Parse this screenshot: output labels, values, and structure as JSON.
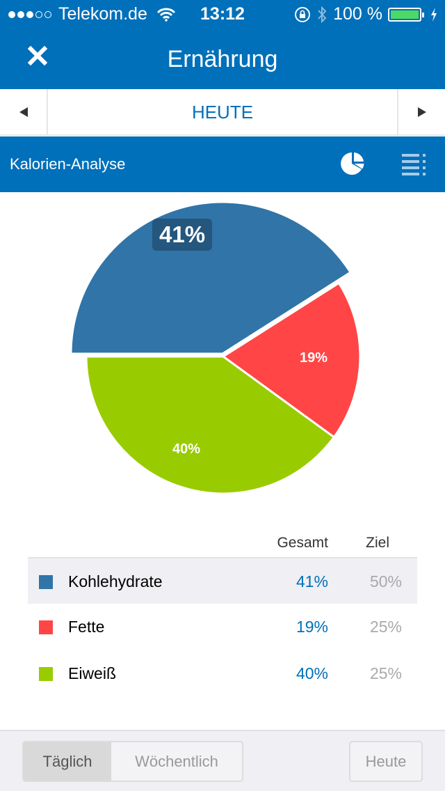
{
  "status_bar": {
    "carrier": "Telekom.de",
    "signal_dots_filled": 3,
    "signal_dots_total": 5,
    "time": "13:12",
    "battery": "100 %",
    "icons": [
      "wifi-icon",
      "rotation-lock-icon",
      "bluetooth-icon",
      "battery-icon",
      "charging-icon"
    ]
  },
  "nav": {
    "title": "Ernährung",
    "close_icon": "close-icon"
  },
  "date_nav": {
    "label": "HEUTE",
    "prev_icon": "triangle-left-icon",
    "next_icon": "triangle-right-icon"
  },
  "section": {
    "title": "Kalorien-Analyse",
    "pie_view_icon": "pie-chart-icon",
    "list_view_icon": "list-icon"
  },
  "colors": {
    "brand": "#0070ba",
    "carbs": "#3074a8",
    "fat": "#ff4545",
    "protein": "#99cc00",
    "label_bg": "#24567e"
  },
  "chart_data": {
    "type": "pie",
    "title": "Kalorien-Analyse",
    "categories": [
      "Kohlehydrate",
      "Fette",
      "Eiweiß"
    ],
    "values": [
      41,
      19,
      40
    ],
    "labels": [
      "41%",
      "19%",
      "40%"
    ],
    "colors": [
      "#3074a8",
      "#ff4545",
      "#99cc00"
    ],
    "highlighted": "Kohlehydrate",
    "legend_position": "bottom-table"
  },
  "table": {
    "headers": {
      "total": "Gesamt",
      "goal": "Ziel"
    },
    "rows": [
      {
        "name": "Kohlehydrate",
        "total": "41%",
        "goal": "50%",
        "color": "#3074a8",
        "selected": true
      },
      {
        "name": "Fette",
        "total": "19%",
        "goal": "25%",
        "color": "#ff4545",
        "selected": false
      },
      {
        "name": "Eiweiß",
        "total": "40%",
        "goal": "25%",
        "color": "#99cc00",
        "selected": false
      }
    ]
  },
  "bottom_bar": {
    "daily": "Täglich",
    "weekly": "Wöchentlich",
    "today": "Heute"
  }
}
